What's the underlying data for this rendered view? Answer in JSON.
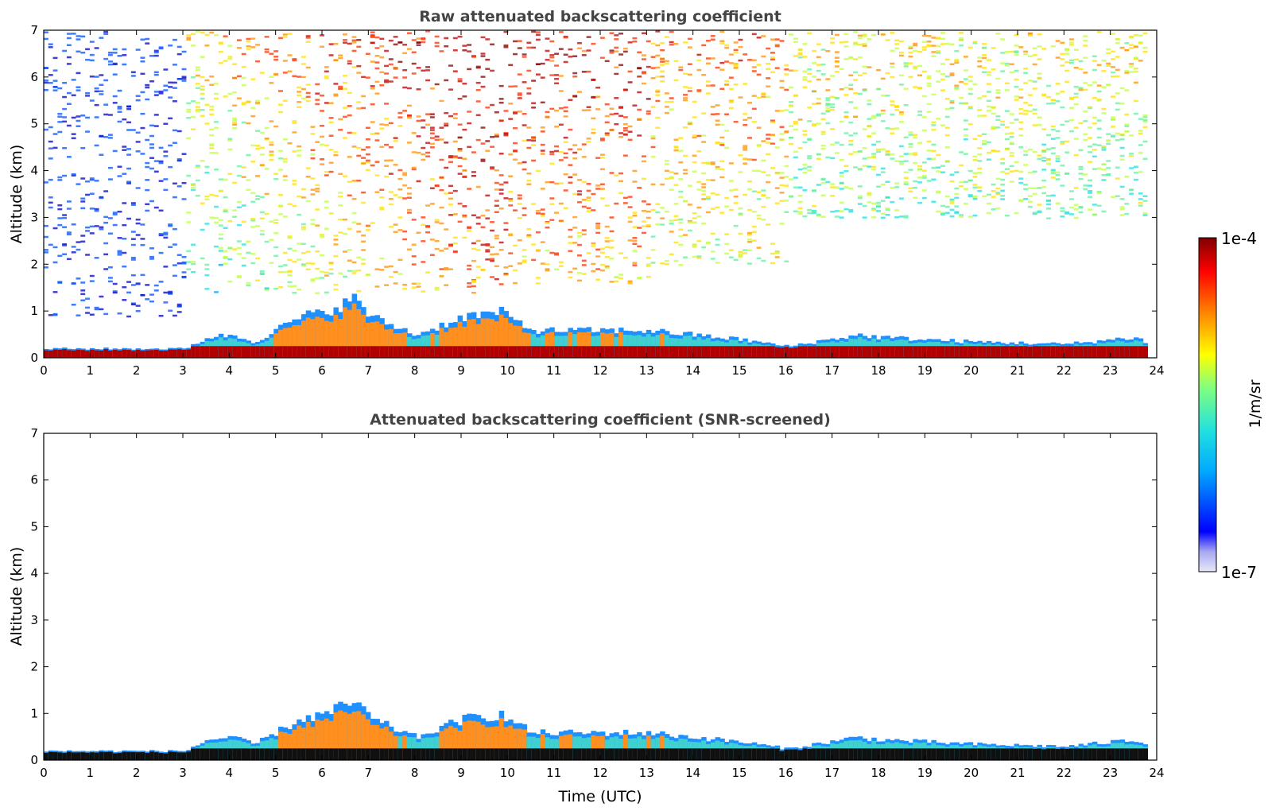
{
  "chart_data": [
    {
      "type": "heatmap",
      "title": "Raw attenuated backscattering coefficient",
      "xlabel": "",
      "ylabel": "Altitude (km)",
      "xlim": [
        0,
        24
      ],
      "ylim": [
        0,
        7
      ],
      "x_ticks": [
        "0",
        "1",
        "2",
        "3",
        "4",
        "5",
        "6",
        "7",
        "8",
        "9",
        "10",
        "11",
        "12",
        "13",
        "14",
        "15",
        "16",
        "17",
        "18",
        "19",
        "20",
        "21",
        "22",
        "23",
        "24"
      ],
      "y_ticks": [
        "0",
        "1",
        "2",
        "3",
        "4",
        "5",
        "6",
        "7"
      ],
      "boundary_layer_top_km": [
        {
          "t": 0,
          "h": 0.2
        },
        {
          "t": 3,
          "h": 0.2
        },
        {
          "t": 3.5,
          "h": 0.45
        },
        {
          "t": 4,
          "h": 0.5
        },
        {
          "t": 4.5,
          "h": 0.35
        },
        {
          "t": 5.5,
          "h": 0.9
        },
        {
          "t": 6,
          "h": 1.0
        },
        {
          "t": 6.7,
          "h": 1.3
        },
        {
          "t": 7,
          "h": 0.9
        },
        {
          "t": 8,
          "h": 0.5
        },
        {
          "t": 9,
          "h": 0.9
        },
        {
          "t": 9.8,
          "h": 1.0
        },
        {
          "t": 10.5,
          "h": 0.6
        },
        {
          "t": 11,
          "h": 0.6
        },
        {
          "t": 12,
          "h": 0.6
        },
        {
          "t": 13,
          "h": 0.6
        },
        {
          "t": 14,
          "h": 0.5
        },
        {
          "t": 15,
          "h": 0.4
        },
        {
          "t": 16,
          "h": 0.25
        },
        {
          "t": 17.5,
          "h": 0.5
        },
        {
          "t": 18,
          "h": 0.45
        },
        {
          "t": 20,
          "h": 0.35
        },
        {
          "t": 22,
          "h": 0.3
        },
        {
          "t": 23.5,
          "h": 0.45
        },
        {
          "t": 23.8,
          "h": 0.3
        }
      ]
    },
    {
      "type": "heatmap",
      "title": "Attenuated backscattering coefficient (SNR-screened)",
      "xlabel": "Time (UTC)",
      "ylabel": "Altitude (km)",
      "xlim": [
        0,
        24
      ],
      "ylim": [
        0,
        7
      ],
      "x_ticks": [
        "0",
        "1",
        "2",
        "3",
        "4",
        "5",
        "6",
        "7",
        "8",
        "9",
        "10",
        "11",
        "12",
        "13",
        "14",
        "15",
        "16",
        "17",
        "18",
        "19",
        "20",
        "21",
        "22",
        "23",
        "24"
      ],
      "y_ticks": [
        "0",
        "1",
        "2",
        "3",
        "4",
        "5",
        "6",
        "7"
      ]
    }
  ],
  "colorbar": {
    "label": "1/m/sr",
    "max_label": "1e-4",
    "min_label": "1e-7",
    "colormap": "jet",
    "colors": [
      "#e8e8f8",
      "#b0b0f0",
      "#0000ff",
      "#00b0ff",
      "#20e0e0",
      "#80ff80",
      "#ffff00",
      "#ff8000",
      "#ff0000",
      "#800000"
    ]
  }
}
